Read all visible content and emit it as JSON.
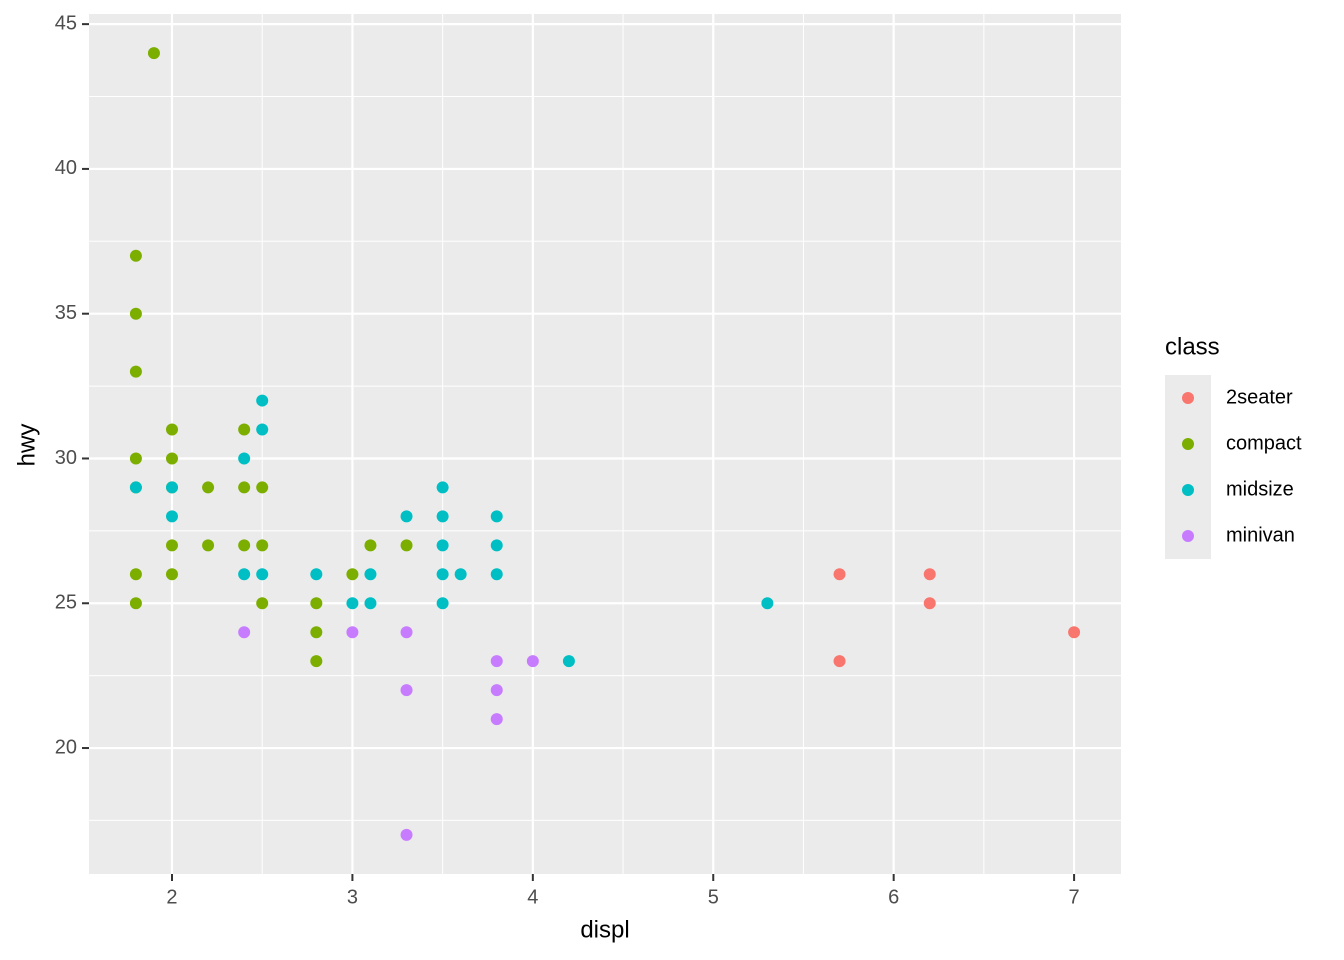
{
  "chart_data": {
    "type": "scatter",
    "x_label": "displ",
    "y_label": "hwy",
    "legend_title": "class",
    "legend_position": "right",
    "grid": true,
    "minor_grid": true,
    "xlim": [
      1.54,
      7.26
    ],
    "ylim": [
      15.65,
      45.35
    ],
    "xticks": [
      2,
      3,
      4,
      5,
      6,
      7
    ],
    "yticks": [
      20,
      25,
      30,
      35,
      40,
      45
    ],
    "series": [
      {
        "name": "2seater",
        "color": "#F8766D",
        "x": [
          5.7,
          5.7,
          6.2,
          6.2,
          7
        ],
        "values": [
          26,
          23,
          26,
          25,
          24
        ]
      },
      {
        "name": "compact",
        "color": "#7CAE00",
        "x": [
          1.9,
          1.8,
          1.8,
          1.8,
          1.8,
          1.8,
          1.8,
          1.8,
          2,
          2,
          2,
          2,
          2,
          2.2,
          2.2,
          2.4,
          2.4,
          2.4,
          2.5,
          2.5,
          2.5,
          2.8,
          2.8,
          2.8,
          3,
          3.1,
          3.3
        ],
        "values": [
          44,
          37,
          35,
          33,
          30,
          29,
          26,
          25,
          31,
          30,
          29,
          27,
          26,
          29,
          27,
          31,
          29,
          27,
          29,
          27,
          25,
          25,
          24,
          23,
          26,
          27,
          27
        ]
      },
      {
        "name": "midsize",
        "color": "#00BFC4",
        "x": [
          1.8,
          2,
          2,
          2.4,
          2.4,
          2.5,
          2.5,
          2.5,
          2.8,
          3,
          3.1,
          3.1,
          3.3,
          3.5,
          3.5,
          3.5,
          3.5,
          3.5,
          3.6,
          3.8,
          3.8,
          3.8,
          4.2,
          5.3
        ],
        "values": [
          29,
          29,
          28,
          30,
          26,
          32,
          31,
          26,
          26,
          25,
          26,
          25,
          28,
          29,
          28,
          27,
          26,
          25,
          26,
          28,
          27,
          26,
          23,
          25
        ]
      },
      {
        "name": "minivan",
        "color": "#C77CFF",
        "x": [
          2.4,
          3,
          3.3,
          3.3,
          3.3,
          3.8,
          3.8,
          3.8,
          4
        ],
        "values": [
          24,
          24,
          24,
          22,
          17,
          23,
          22,
          21,
          23
        ]
      }
    ]
  }
}
